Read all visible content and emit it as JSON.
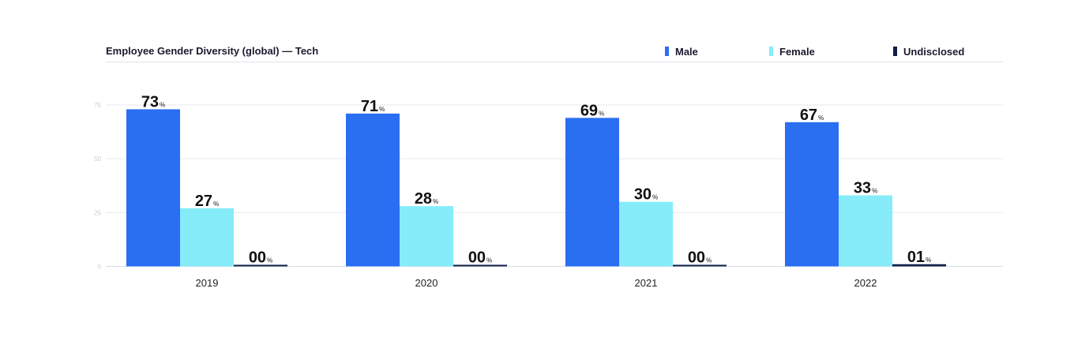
{
  "chart_data": {
    "type": "bar",
    "title": "Employee Gender Diversity (global) — Tech",
    "xlabel": "",
    "ylabel": "",
    "categories": [
      "2019",
      "2020",
      "2021",
      "2022"
    ],
    "series": [
      {
        "name": "Male",
        "values": [
          73,
          71,
          69,
          67
        ],
        "labels": [
          "73",
          "71",
          "69",
          "67"
        ],
        "color": "#2a6ef2"
      },
      {
        "name": "Female",
        "values": [
          27,
          28,
          30,
          33
        ],
        "labels": [
          "27",
          "28",
          "30",
          "33"
        ],
        "color": "#86ecf9"
      },
      {
        "name": "Undisclosed",
        "values": [
          0,
          0,
          0,
          1
        ],
        "labels": [
          "00",
          "00",
          "00",
          "01"
        ],
        "color": "#0f1f45"
      }
    ],
    "value_suffix": "%",
    "yticks": [
      0,
      25,
      50,
      75
    ],
    "ylim": [
      0,
      75
    ],
    "grid": true,
    "legend_position": "top-right"
  }
}
